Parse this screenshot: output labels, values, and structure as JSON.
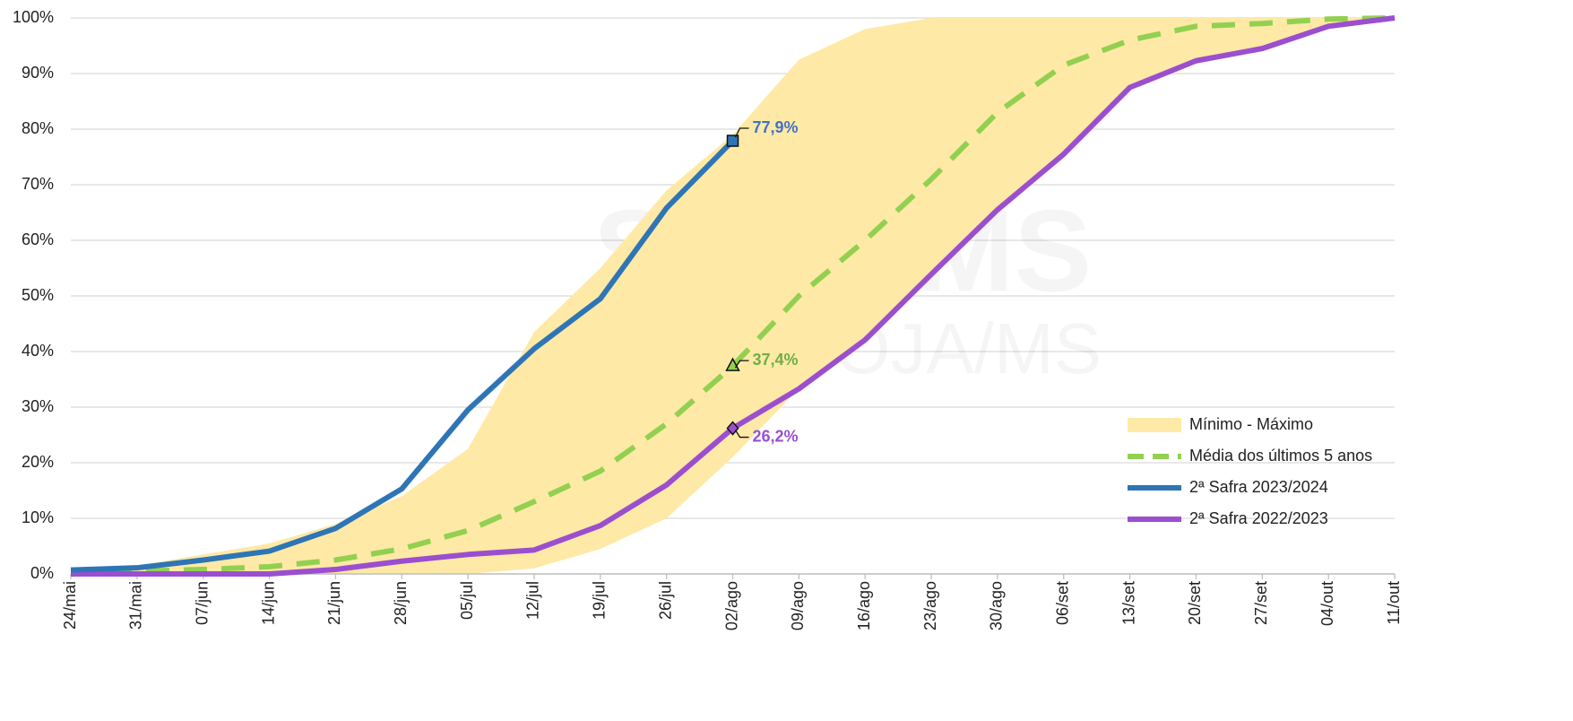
{
  "chart_data": {
    "type": "line",
    "watermark": [
      "SIGA-MS",
      "APROSOJA/MS"
    ],
    "categories": [
      "24/mai",
      "31/mai",
      "07/jun",
      "14/jun",
      "21/jun",
      "28/jun",
      "05/jul",
      "12/jul",
      "19/jul",
      "26/jul",
      "02/ago",
      "09/ago",
      "16/ago",
      "23/ago",
      "30/ago",
      "06/set",
      "13/set",
      "20/set",
      "27/set",
      "04/out",
      "11/out"
    ],
    "ylim": [
      0,
      100
    ],
    "yticks": [
      {
        "value": 0,
        "label": "0%"
      },
      {
        "value": 10,
        "label": "10%"
      },
      {
        "value": 20,
        "label": "20%"
      },
      {
        "value": 30,
        "label": "30%"
      },
      {
        "value": 40,
        "label": "40%"
      },
      {
        "value": 50,
        "label": "50%"
      },
      {
        "value": 60,
        "label": "60%"
      },
      {
        "value": 70,
        "label": "70%"
      },
      {
        "value": 80,
        "label": "80%"
      },
      {
        "value": 90,
        "label": "90%"
      },
      {
        "value": 100,
        "label": "100%"
      }
    ],
    "grid": true,
    "legend": "lower right",
    "band": {
      "name": "Mínimo - Máximo",
      "color": "#ffe9a6",
      "lower": [
        0,
        0,
        0,
        0,
        0,
        0,
        0,
        1,
        4.5,
        10,
        21,
        33.3,
        42.1,
        53.9,
        65.5,
        75.5,
        87.5,
        92.3,
        94.5,
        98.5,
        100
      ],
      "upper": [
        0.5,
        1.5,
        3.5,
        5.5,
        9,
        14,
        22.5,
        43.5,
        55,
        69,
        79,
        92.5,
        98,
        100,
        100,
        100,
        100,
        100,
        100,
        100,
        100
      ]
    },
    "series": [
      {
        "name": "Média dos últimos 5 anos",
        "color": "#92d050",
        "dash": true,
        "marker": "triangle",
        "label_color": "#70ad47",
        "values": [
          0.3,
          0.5,
          0.8,
          1.3,
          2.5,
          4.5,
          7.8,
          13,
          18.5,
          27,
          37.4,
          50,
          60,
          71,
          83,
          91.5,
          96,
          98.5,
          99,
          99.8,
          100
        ],
        "value_labels": [
          null,
          null,
          null,
          null,
          null,
          null,
          null,
          null,
          null,
          null,
          "37,4%",
          null,
          null,
          null,
          null,
          null,
          null,
          null,
          null,
          null,
          null
        ]
      },
      {
        "name": "2ª Safra 2023/2024",
        "color": "#2e75b6",
        "marker": "square",
        "label_color": "#4472c4",
        "values": [
          0.7,
          1.1,
          2.5,
          4.1,
          8.2,
          15.3,
          29.5,
          40.5,
          49.5,
          65.8,
          77.9,
          null,
          null,
          null,
          null,
          null,
          null,
          null,
          null,
          null,
          null
        ],
        "value_labels": [
          null,
          null,
          null,
          null,
          null,
          null,
          null,
          null,
          null,
          null,
          "77,9%",
          null,
          null,
          null,
          null,
          null,
          null,
          null,
          null,
          null,
          null
        ]
      },
      {
        "name": "2ª Safra 2022/2023",
        "color": "#9b4fcf",
        "marker": "diamond",
        "label_color": "#9b4fcf",
        "values": [
          0,
          0,
          0,
          0,
          0.8,
          2.3,
          3.5,
          4.3,
          8.7,
          16,
          26.2,
          33.3,
          42.1,
          53.9,
          65.5,
          75.5,
          87.5,
          92.3,
          94.5,
          98.5,
          100
        ],
        "value_labels": [
          null,
          null,
          null,
          null,
          null,
          null,
          null,
          null,
          null,
          null,
          "26,2%",
          null,
          null,
          null,
          null,
          null,
          null,
          null,
          null,
          null,
          null
        ]
      }
    ]
  }
}
